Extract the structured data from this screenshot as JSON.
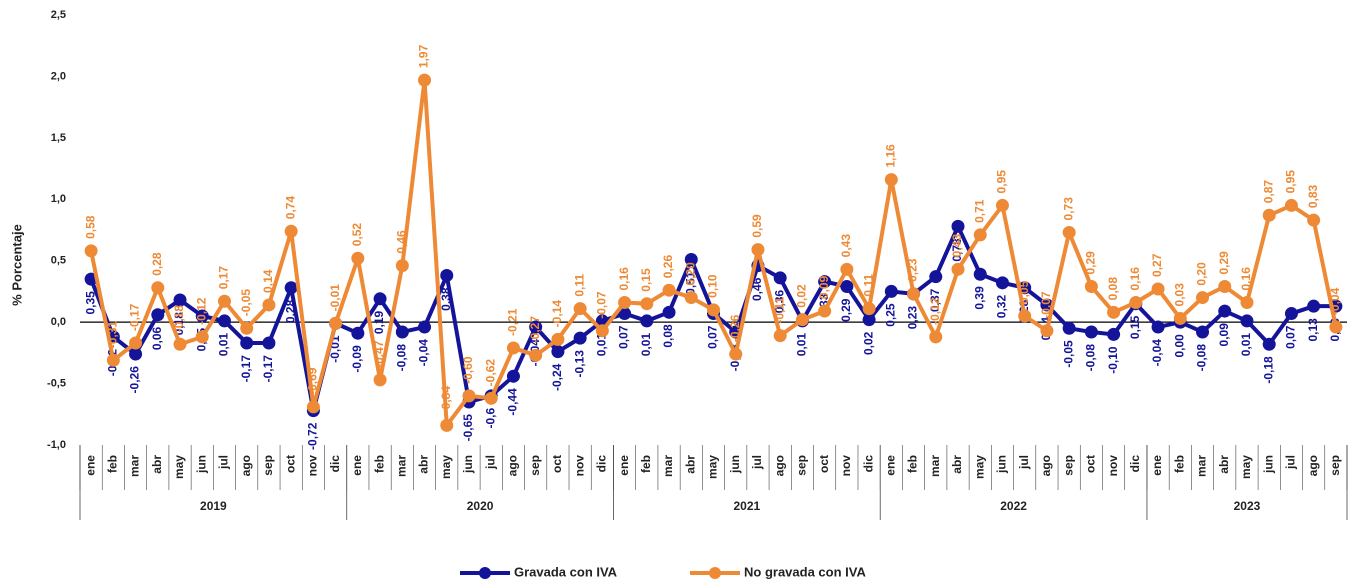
{
  "chart_data": {
    "type": "line",
    "y_label": "% Porcentaje",
    "categories": [
      "ene",
      "feb",
      "mar",
      "abr",
      "may",
      "jun",
      "jul",
      "ago",
      "sep",
      "oct",
      "nov",
      "dic",
      "ene",
      "feb",
      "mar",
      "abr",
      "may",
      "jun",
      "jul",
      "ago",
      "sep",
      "oct",
      "nov",
      "dic",
      "ene",
      "feb",
      "mar",
      "abr",
      "may",
      "jun",
      "jul",
      "ago",
      "sep",
      "oct",
      "nov",
      "dic",
      "ene",
      "feb",
      "mar",
      "abr",
      "may",
      "jun",
      "jul",
      "ago",
      "sep",
      "oct",
      "nov",
      "dic",
      "ene",
      "feb",
      "mar",
      "abr",
      "may",
      "jun",
      "jul",
      "ago",
      "sep"
    ],
    "category_groups": [
      {
        "label": "2019",
        "size": 12
      },
      {
        "label": "2020",
        "size": 12
      },
      {
        "label": "2021",
        "size": 12
      },
      {
        "label": "2022",
        "size": 12
      },
      {
        "label": "2023",
        "size": 9
      }
    ],
    "ylim": [
      -1.0,
      2.5
    ],
    "yticks": [
      {
        "value": -1.0,
        "label": "-1,0"
      },
      {
        "value": -0.5,
        "label": "-0,5"
      },
      {
        "value": 0.0,
        "label": "0,0"
      },
      {
        "value": 0.5,
        "label": "0,5"
      },
      {
        "value": 1.0,
        "label": "1,0"
      },
      {
        "value": 1.5,
        "label": "1,5"
      },
      {
        "value": 2.0,
        "label": "2,0"
      },
      {
        "value": 2.5,
        "label": "2,5"
      }
    ],
    "legend": "bottom",
    "series": [
      {
        "name": "Gravada con IVA",
        "color": "#14149a",
        "values": [
          0.35,
          -0.12,
          -0.26,
          0.06,
          0.18,
          0.05,
          0.01,
          -0.17,
          -0.17,
          0.28,
          -0.72,
          -0.01,
          -0.09,
          0.19,
          -0.08,
          -0.04,
          0.38,
          -0.65,
          -0.6,
          -0.44,
          -0.04,
          -0.24,
          -0.13,
          0.01,
          0.07,
          0.01,
          0.08,
          0.51,
          0.07,
          -0.08,
          0.46,
          0.36,
          0.01,
          0.33,
          0.29,
          0.02,
          0.25,
          0.23,
          0.37,
          0.78,
          0.39,
          0.32,
          0.28,
          0.14,
          -0.05,
          -0.08,
          -0.1,
          0.15,
          -0.04,
          0.0,
          -0.08,
          0.09,
          0.01,
          -0.18,
          0.07,
          0.13,
          0.13
        ],
        "value_labels": [
          "0,35",
          "-0,12",
          "-0,26",
          "0,06",
          "0,18",
          "0,05",
          "0,01",
          "-0,17",
          "-0,17",
          "0,28",
          "-0,72",
          "-0,01",
          "-0,09",
          "0,19",
          "-0,08",
          "-0,04",
          "0,38",
          "-0,65",
          "-0,6",
          "-0,44",
          "-0,04",
          "-0,24",
          "-0,13",
          "0,01",
          "0,07",
          "0,01",
          "0,08",
          "0,51",
          "0,07",
          "-0,08",
          "0,46",
          "0,36",
          "0,01",
          "0,33",
          "0,29",
          "0,02",
          "0,25",
          "0,23",
          "0,37",
          "0,78",
          "0,39",
          "0,32",
          "0,28",
          "0,14",
          "-0,05",
          "-0,08",
          "-0,10",
          "0,15",
          "-0,04",
          "0,00",
          "-0,08",
          "0,09",
          "0,01",
          "-0,18",
          "0,07",
          "0,13",
          "0,13"
        ]
      },
      {
        "name": "No gravada con IVA",
        "color": "#ee8a35",
        "values": [
          0.58,
          -0.31,
          -0.17,
          0.28,
          -0.18,
          -0.12,
          0.17,
          -0.05,
          0.14,
          0.74,
          -0.69,
          -0.01,
          0.52,
          -0.47,
          0.46,
          1.97,
          -0.84,
          -0.6,
          -0.62,
          -0.21,
          -0.27,
          -0.14,
          0.11,
          -0.07,
          0.16,
          0.15,
          0.26,
          0.2,
          0.1,
          -0.26,
          0.59,
          -0.11,
          0.02,
          0.09,
          0.43,
          0.11,
          1.16,
          0.23,
          -0.12,
          0.43,
          0.71,
          0.95,
          0.05,
          -0.07,
          0.73,
          0.29,
          0.08,
          0.16,
          0.27,
          0.03,
          0.2,
          0.29,
          0.16,
          0.87,
          0.95,
          0.83,
          -0.04
        ],
        "value_labels": [
          "0,58",
          "-0,31",
          "-0,17",
          "0,28",
          "-0,18",
          "-0,12",
          "0,17",
          "-0,05",
          "0,14",
          "0,74",
          "-0,69",
          "-0,01",
          "0,52",
          "-0,47",
          "0,46",
          "1,97",
          "-0,84",
          "-0,60",
          "-0,62",
          "-0,21",
          "-0,27",
          "-0,14",
          "0,11",
          "-0,07",
          "0,16",
          "0,15",
          "0,26",
          "0,20",
          "0,10",
          "-0,26",
          "0,59",
          "-0,11",
          "0,02",
          "0,09",
          "0,43",
          "0,11",
          "1,16",
          "0,23",
          "-0,12",
          "0,43",
          "0,71",
          "0,95",
          "0,05",
          "-0,07",
          "0,73",
          "0,29",
          "0,08",
          "0,16",
          "0,27",
          "0,03",
          "0,20",
          "0,29",
          "0,16",
          "0,87",
          "0,95",
          "0,83",
          "-0,04"
        ]
      }
    ]
  }
}
